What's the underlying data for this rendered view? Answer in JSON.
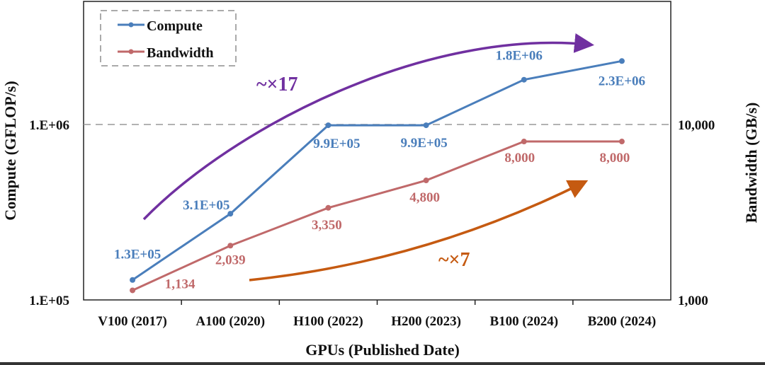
{
  "chart_data": {
    "type": "line",
    "title": "",
    "xlabel": "GPUs (Published Date)",
    "ylabel": "Compute (GFLOP/s)",
    "y2label": "Bandwidth (GB/s)",
    "categories": [
      "V100 (2017)",
      "A100 (2020)",
      "H100 (2022)",
      "H200 (2023)",
      "B100 (2024)",
      "B200 (2024)"
    ],
    "yscale": "log",
    "ylim": [
      100000,
      5000000
    ],
    "y2lim": [
      1000,
      50000
    ],
    "yticks": [
      {
        "value": 100000,
        "label": "1.E+05"
      },
      {
        "value": 1000000,
        "label": "1.E+06"
      }
    ],
    "y2ticks": [
      {
        "value": 1000,
        "label": "1,000"
      },
      {
        "value": 10000,
        "label": "10,000"
      }
    ],
    "reference_line": {
      "axis": "y",
      "value": 1000000,
      "style": "dashed"
    },
    "legend": {
      "placement": "top-left",
      "style": "dashed-box"
    },
    "series": [
      {
        "name": "Compute",
        "axis": "left",
        "color": "#4a7ebb",
        "values": [
          130000,
          310000,
          990000,
          990000,
          1800000,
          2300000
        ],
        "labels": [
          "1.3E+05",
          "3.1E+05",
          "9.9E+05",
          "9.9E+05",
          "1.8E+06",
          "2.3E+06"
        ]
      },
      {
        "name": "Bandwidth",
        "axis": "right",
        "color": "#c0696a",
        "values": [
          1134,
          2039,
          3350,
          4800,
          8000,
          8000
        ],
        "labels": [
          "1,134",
          "2,039",
          "3,350",
          "4,800",
          "8,000",
          "8,000"
        ]
      }
    ],
    "annotations": [
      {
        "text": "~×17",
        "color": "#7030a0",
        "target": "Compute growth arrow"
      },
      {
        "text": "~×7",
        "color": "#c55a11",
        "target": "Bandwidth growth arrow"
      }
    ]
  }
}
